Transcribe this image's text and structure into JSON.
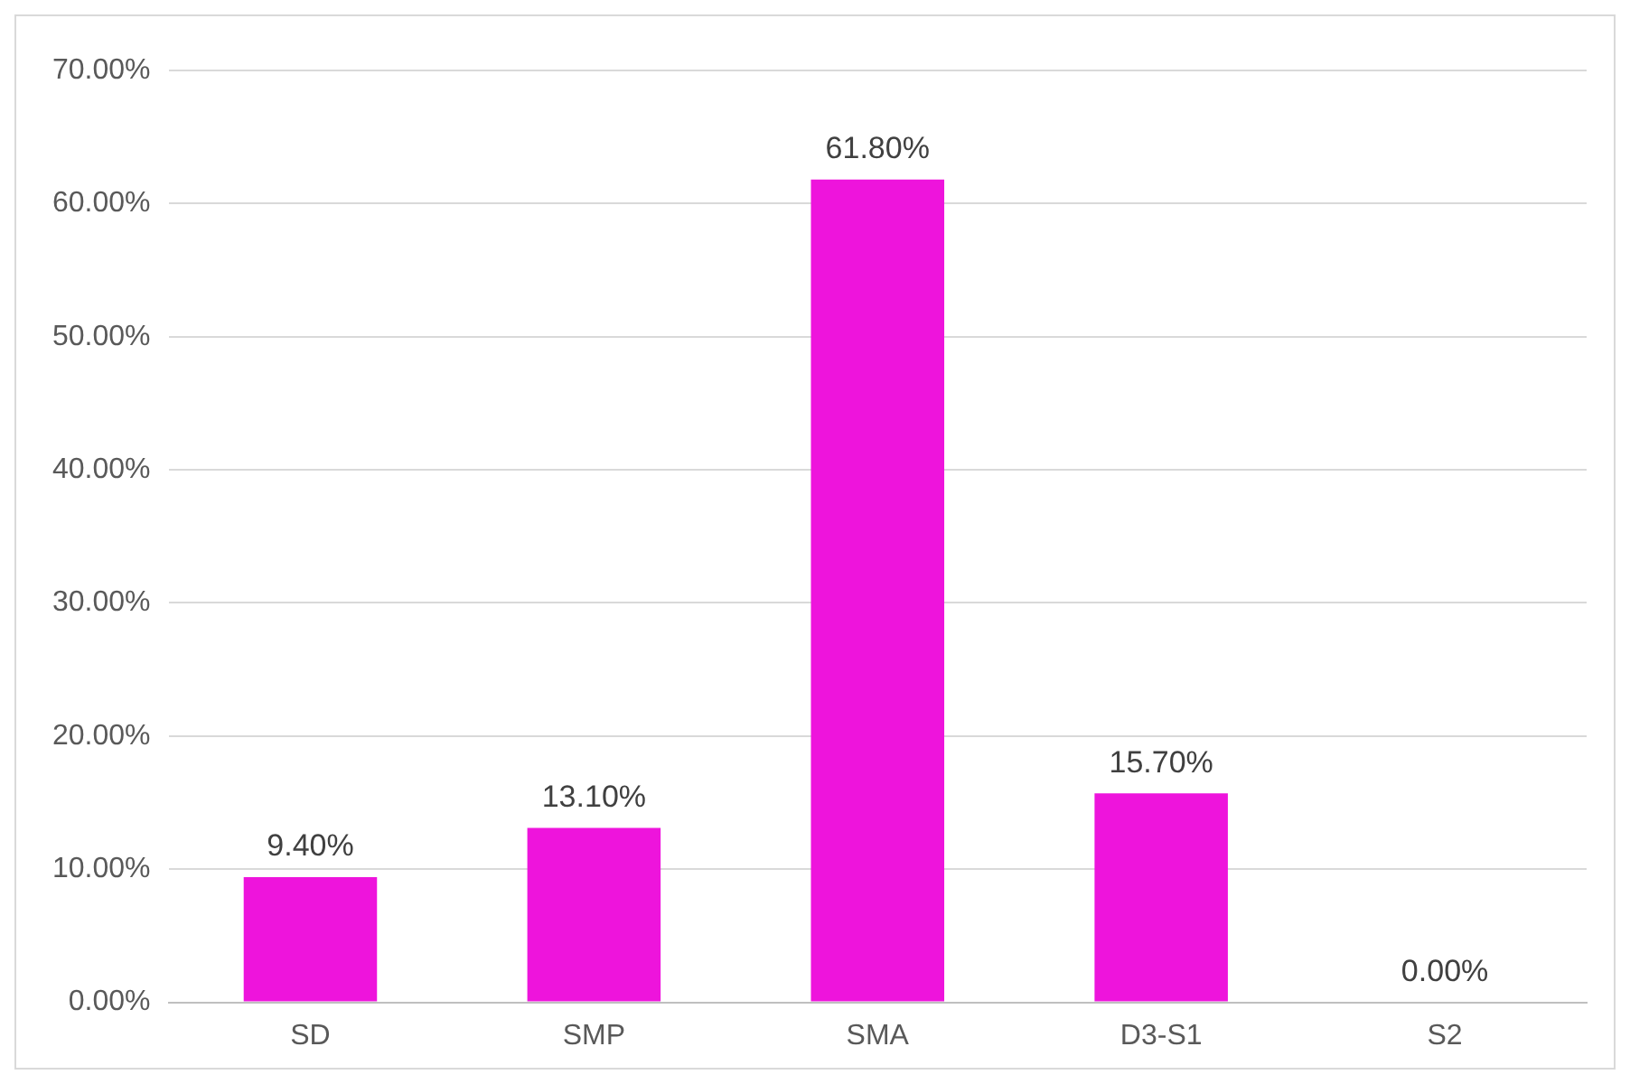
{
  "chart_data": {
    "type": "bar",
    "categories": [
      "SD",
      "SMP",
      "SMA",
      "D3-S1",
      "S2"
    ],
    "values": [
      9.4,
      13.1,
      61.8,
      15.7,
      0
    ],
    "value_labels": [
      "9.40%",
      "13.10%",
      "61.80%",
      "15.70%",
      "0.00%"
    ],
    "color": "#ee14dc",
    "ylim": [
      0,
      70
    ],
    "yticks": [
      {
        "value": 0,
        "label": "0.00%"
      },
      {
        "value": 10,
        "label": "10.00%"
      },
      {
        "value": 20,
        "label": "20.00%"
      },
      {
        "value": 30,
        "label": "30.00%"
      },
      {
        "value": 40,
        "label": "40.00%"
      },
      {
        "value": 50,
        "label": "50.00%"
      },
      {
        "value": 60,
        "label": "60.00%"
      },
      {
        "value": 70,
        "label": "70.00%"
      }
    ],
    "grid": "y",
    "legend": false
  }
}
